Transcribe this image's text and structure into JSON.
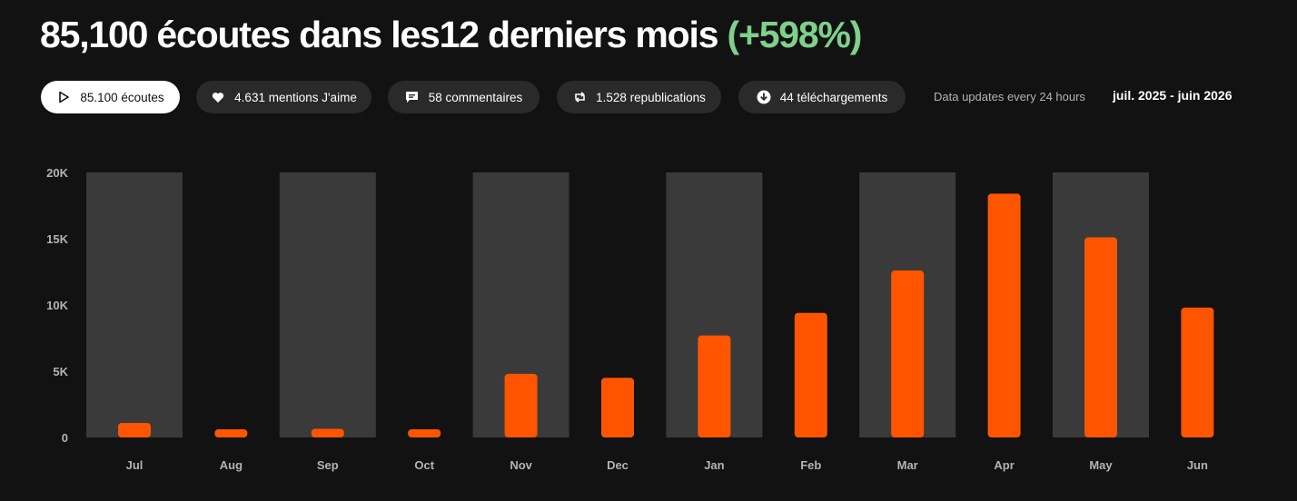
{
  "header": {
    "title_main": "85,100 écoutes dans les12 derniers mois",
    "title_change": "(+598%)"
  },
  "stats": [
    {
      "label": "85.100 écoutes",
      "icon": "play-icon",
      "active": true
    },
    {
      "label": "4.631 mentions J'aime",
      "icon": "heart-icon",
      "active": false
    },
    {
      "label": "58 commentaires",
      "icon": "comment-icon",
      "active": false
    },
    {
      "label": "1.528 republications",
      "icon": "repost-icon",
      "active": false
    },
    {
      "label": "44 téléchargements",
      "icon": "download-icon",
      "active": false
    }
  ],
  "update_note": "Data updates every 24 hours",
  "date_range": "juil. 2025 - juin 2026",
  "colors": {
    "accent": "#ff5500",
    "positive": "#7fd08a",
    "band": "#3a3a3a",
    "background": "#121212"
  },
  "chart_data": {
    "type": "bar",
    "categories": [
      "Jul",
      "Aug",
      "Sep",
      "Oct",
      "Nov",
      "Dec",
      "Jan",
      "Feb",
      "Mar",
      "Apr",
      "May",
      "Jun"
    ],
    "values": [
      1100,
      450,
      650,
      450,
      4800,
      4500,
      7700,
      9400,
      12600,
      18400,
      15100,
      9800
    ],
    "ylim": [
      0,
      20000
    ],
    "yticks": [
      0,
      5000,
      10000,
      15000,
      20000
    ],
    "ytick_labels": [
      "0",
      "5K",
      "10K",
      "15K",
      "20K"
    ],
    "xlabel": "",
    "ylabel": "",
    "grid": false,
    "alternating_bands": true
  }
}
